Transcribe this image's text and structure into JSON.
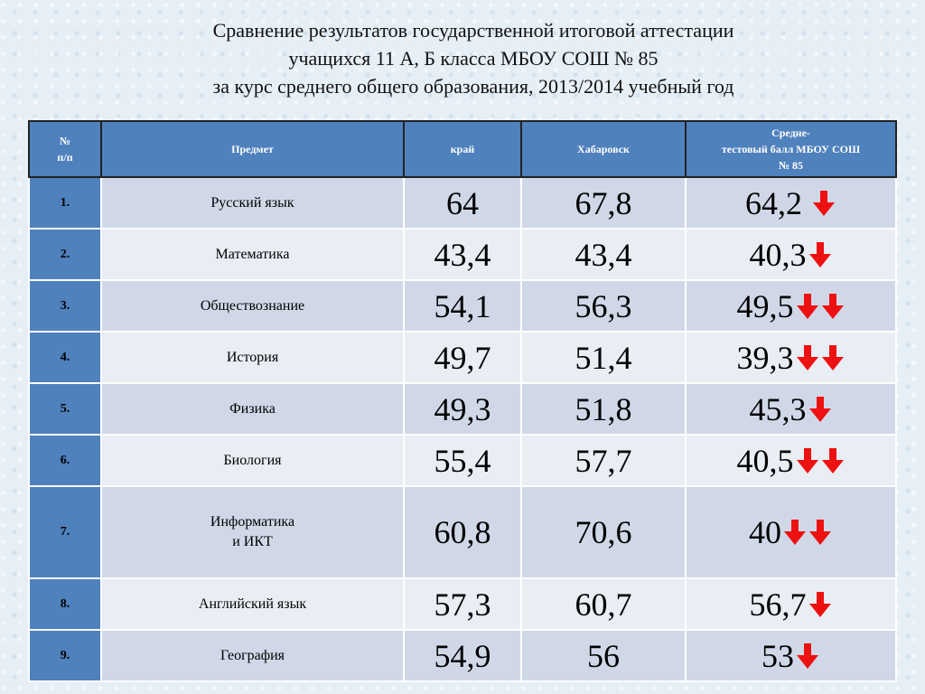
{
  "title": {
    "line1": "Сравнение результатов государственной итоговой аттестации",
    "line2": "учащихся 11 А, Б класса МБОУ СОШ № 85",
    "line3": "за курс среднего общего образования, 2013/2014 учебный год"
  },
  "columns": {
    "num_line1": "№",
    "num_line2": "п/п",
    "subject": "Предмет",
    "region": "край",
    "city": "Хабаровск",
    "school_line1": "Средне-",
    "school_line2": "тестовый балл МБОУ СОШ",
    "school_line3": "№ 85"
  },
  "colors": {
    "header_bg": "#4f81bd",
    "arrow": "#ee1111"
  },
  "rows": [
    {
      "num": "1.",
      "subject": [
        "Русский язык"
      ],
      "region": "64",
      "city": "67,8",
      "school": "64,2 ",
      "arrows": 1
    },
    {
      "num": "2.",
      "subject": [
        "Математика"
      ],
      "region": "43,4",
      "city": "43,4",
      "school": "40,3",
      "arrows": 1
    },
    {
      "num": "3.",
      "subject": [
        "Обществознание"
      ],
      "region": "54,1",
      "city": "56,3",
      "school": "49,5",
      "arrows": 2
    },
    {
      "num": "4.",
      "subject": [
        "История"
      ],
      "region": "49,7",
      "city": "51,4",
      "school": "39,3",
      "arrows": 2
    },
    {
      "num": "5.",
      "subject": [
        "Физика"
      ],
      "region": "49,3",
      "city": "51,8",
      "school": "45,3",
      "arrows": 1
    },
    {
      "num": "6.",
      "subject": [
        "Биология"
      ],
      "region": "55,4",
      "city": "57,7",
      "school": "40,5",
      "arrows": 2
    },
    {
      "num": "7.",
      "subject": [
        "Информатика",
        "и ИКТ"
      ],
      "region": "60,8",
      "city": "70,6",
      "school": "40",
      "arrows": 2
    },
    {
      "num": "8.",
      "subject": [
        "Английский язык"
      ],
      "region": "57,3",
      "city": "60,7",
      "school": "56,7",
      "arrows": 1
    },
    {
      "num": "9.",
      "subject": [
        "География"
      ],
      "region": "54,9",
      "city": "56",
      "school": "53",
      "arrows": 1
    }
  ]
}
